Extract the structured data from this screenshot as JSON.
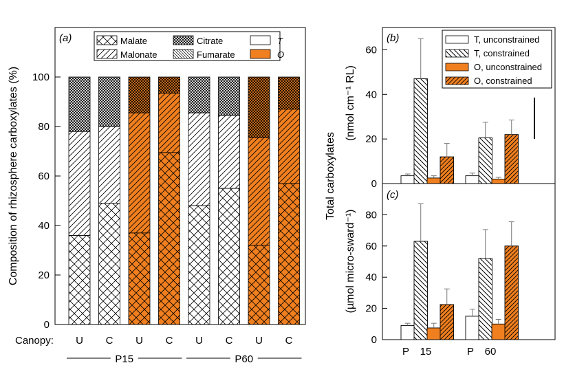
{
  "colors": {
    "T": "#ffffff",
    "O": "#f07f1f",
    "ink": "#000000"
  },
  "chart_data": [
    {
      "type": "bar",
      "panel": "(a)",
      "stacked": true,
      "ylabel": "Composition of rhizosphere carboxylates (%)",
      "ylim": [
        0,
        100
      ],
      "yticks": [
        0,
        20,
        40,
        60,
        80,
        100
      ],
      "xprefix": "Canopy:",
      "categories": [
        "U",
        "C",
        "U",
        "C",
        "U",
        "C",
        "U",
        "C"
      ],
      "groups": [
        {
          "label": "P15",
          "members": [
            0,
            1,
            2,
            3
          ]
        },
        {
          "label": "P60",
          "members": [
            4,
            5,
            6,
            7
          ]
        }
      ],
      "treatment": [
        "T",
        "T",
        "O",
        "O",
        "T",
        "T",
        "O",
        "O"
      ],
      "series": [
        {
          "name": "Malate",
          "pattern": "cross",
          "values": [
            36,
            49,
            37,
            69.5,
            48,
            55,
            32,
            57
          ]
        },
        {
          "name": "Malonate",
          "pattern": "diag-right",
          "values": [
            42,
            31,
            48.5,
            24,
            37.5,
            29.5,
            43.5,
            30
          ]
        },
        {
          "name": "Citrate",
          "pattern": "dots",
          "values": [
            22,
            20,
            14.5,
            6.5,
            14.5,
            15.5,
            24.5,
            13
          ]
        }
      ],
      "legend": {
        "placement": "top",
        "items": [
          {
            "label": "Malate",
            "pattern": "cross"
          },
          {
            "label": "Citrate",
            "pattern": "dots"
          },
          {
            "label": "T",
            "pattern": "T"
          },
          {
            "label": "Malonate",
            "pattern": "diag-right"
          },
          {
            "label": "Fumarate",
            "pattern": "diag-left"
          },
          {
            "label": "O",
            "pattern": "O"
          }
        ]
      }
    },
    {
      "type": "bar",
      "panel": "(b)",
      "ylabel_line1": "Total carboxylates",
      "ylabel_line2": "(nmol cm⁻¹ RL)",
      "ylim": [
        0,
        70
      ],
      "yticks": [
        0,
        20,
        40,
        60
      ],
      "categories": [
        "15",
        "60"
      ],
      "series": [
        {
          "name": "T, unconstrained",
          "values": [
            3.5,
            3.5
          ],
          "errors": [
            0.8,
            1.2
          ]
        },
        {
          "name": "T, constrained",
          "values": [
            47,
            20.5
          ],
          "errors": [
            18,
            7
          ]
        },
        {
          "name": "O, unconstrained",
          "values": [
            2.5,
            2
          ],
          "errors": [
            1,
            0.8
          ]
        },
        {
          "name": "O, constrained",
          "values": [
            12,
            22
          ],
          "errors": [
            6,
            6.5
          ]
        }
      ],
      "legend": {
        "placement": "top-right",
        "items": [
          {
            "label": "T, unconstrained",
            "pattern": "T"
          },
          {
            "label": "T, constrained",
            "pattern": "T-hatch"
          },
          {
            "label": "O, unconstrained",
            "pattern": "O"
          },
          {
            "label": "O, constrained",
            "pattern": "O-hatch"
          }
        ]
      }
    },
    {
      "type": "bar",
      "panel": "(c)",
      "ylabel": "(µmol micro-sward⁻¹)",
      "ylim": [
        0,
        100
      ],
      "yticks": [
        0,
        20,
        40,
        60,
        80
      ],
      "xprefix": "P",
      "categories": [
        "15",
        "60"
      ],
      "series": [
        {
          "name": "T, unconstrained",
          "values": [
            9,
            15
          ],
          "errors": [
            1.5,
            4.5
          ]
        },
        {
          "name": "T, constrained",
          "values": [
            63,
            52
          ],
          "errors": [
            24,
            18.5
          ]
        },
        {
          "name": "O, unconstrained",
          "values": [
            7.5,
            10
          ],
          "errors": [
            3,
            3
          ]
        },
        {
          "name": "O, constrained",
          "values": [
            22.5,
            60
          ],
          "errors": [
            10,
            15.5
          ]
        }
      ]
    }
  ]
}
